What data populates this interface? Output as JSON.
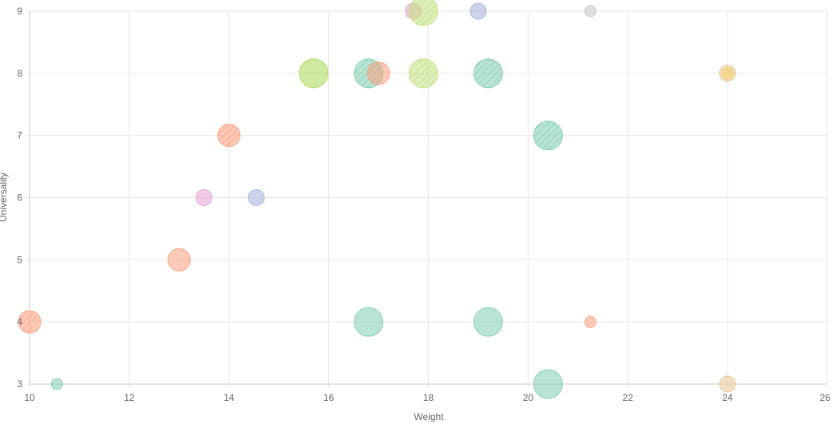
{
  "chart_data": {
    "type": "scatter",
    "subtype": "bubble",
    "title": "",
    "xlabel": "Weight",
    "ylabel": "Universality",
    "xlim": [
      10,
      26
    ],
    "ylim": [
      3,
      9
    ],
    "xticks": [
      10,
      12,
      14,
      16,
      18,
      20,
      22,
      24,
      26
    ],
    "yticks": [
      3,
      4,
      5,
      6,
      7,
      8,
      9
    ],
    "grid": true,
    "legend": "none",
    "colors": {
      "teal": "#7fcdb0",
      "orange": "#fc9f7c",
      "green": "#a6d854",
      "lightgreen": "#c0e27e",
      "pink": "#e89cd2",
      "blue": "#a3afd9",
      "yellow": "#f5cf6b",
      "tan": "#e8c494",
      "gray": "#c4c4c4"
    },
    "points": [
      {
        "x": 10.0,
        "y": 4,
        "size": 3,
        "color": "orange",
        "hatch": true
      },
      {
        "x": 10.55,
        "y": 3,
        "size": 1,
        "color": "teal",
        "hatch": false
      },
      {
        "x": 13.0,
        "y": 5,
        "size": 3,
        "color": "orange",
        "hatch": false
      },
      {
        "x": 13.5,
        "y": 6,
        "size": 2,
        "color": "pink",
        "hatch": false
      },
      {
        "x": 14.0,
        "y": 7,
        "size": 3,
        "color": "orange",
        "hatch": true
      },
      {
        "x": 14.55,
        "y": 6,
        "size": 2,
        "color": "blue",
        "hatch": false
      },
      {
        "x": 15.7,
        "y": 8,
        "size": 4,
        "color": "green",
        "hatch": false
      },
      {
        "x": 16.8,
        "y": 8,
        "size": 4,
        "color": "teal",
        "hatch": true
      },
      {
        "x": 17.0,
        "y": 8,
        "size": 3,
        "color": "orange",
        "hatch": false
      },
      {
        "x": 16.8,
        "y": 4,
        "size": 4,
        "color": "teal",
        "hatch": false
      },
      {
        "x": 17.7,
        "y": 9,
        "size": 2,
        "color": "pink",
        "hatch": false
      },
      {
        "x": 17.9,
        "y": 9,
        "size": 4,
        "color": "lightgreen",
        "hatch": true
      },
      {
        "x": 17.9,
        "y": 8,
        "size": 4,
        "color": "lightgreen",
        "hatch": true
      },
      {
        "x": 19.0,
        "y": 9,
        "size": 2,
        "color": "blue",
        "hatch": false
      },
      {
        "x": 19.2,
        "y": 8,
        "size": 4,
        "color": "teal",
        "hatch": true
      },
      {
        "x": 19.2,
        "y": 4,
        "size": 4,
        "color": "teal",
        "hatch": false
      },
      {
        "x": 20.4,
        "y": 7,
        "size": 4,
        "color": "teal",
        "hatch": true
      },
      {
        "x": 20.4,
        "y": 3,
        "size": 4,
        "color": "teal",
        "hatch": false
      },
      {
        "x": 21.25,
        "y": 9,
        "size": 1,
        "color": "gray",
        "hatch": false
      },
      {
        "x": 21.25,
        "y": 4,
        "size": 1,
        "color": "orange",
        "hatch": false
      },
      {
        "x": 24.0,
        "y": 8,
        "size": 2,
        "color": "tan",
        "hatch": false
      },
      {
        "x": 24.0,
        "y": 8,
        "size": 1,
        "color": "yellow",
        "hatch": false
      },
      {
        "x": 24.0,
        "y": 3,
        "size": 2,
        "color": "tan",
        "hatch": false
      }
    ]
  }
}
